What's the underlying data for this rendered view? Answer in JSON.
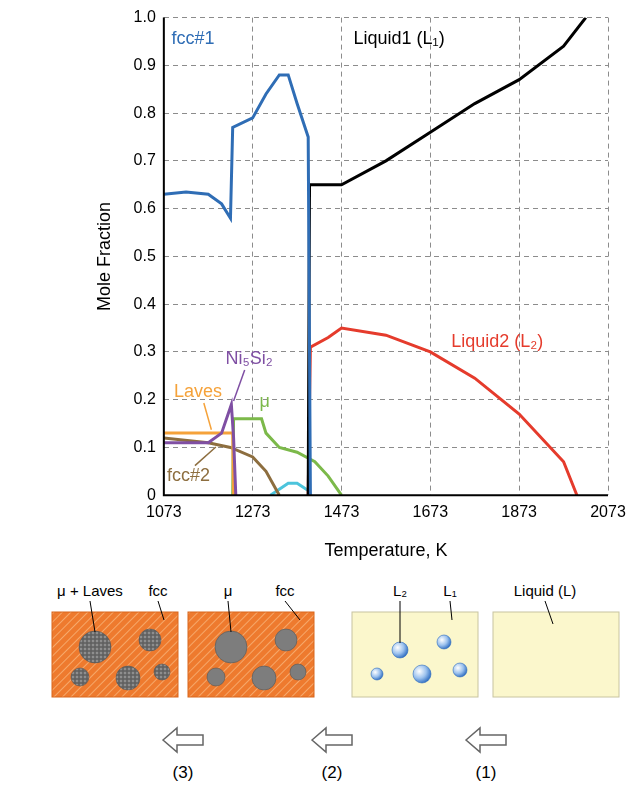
{
  "chart_data": {
    "type": "line",
    "xlabel": "Temperature, K",
    "ylabel": "Mole Fraction",
    "xlim": [
      1073,
      2073
    ],
    "xticks": [
      1073,
      1273,
      1473,
      1673,
      1873,
      2073
    ],
    "ylim": [
      0,
      1
    ],
    "yticks": [
      0,
      0.1,
      0.2,
      0.3,
      0.4,
      0.5,
      0.6,
      0.7,
      0.8,
      0.9,
      {
        "value": 1,
        "label": "1.0"
      }
    ],
    "grid": true,
    "series": [
      {
        "name": "fcc#1",
        "color": "#2f6db5",
        "x": [
          1073,
          1123,
          1173,
          1203,
          1223,
          1228,
          1273,
          1303,
          1333,
          1353,
          1373,
          1398,
          1403
        ],
        "values": [
          0.63,
          0.635,
          0.63,
          0.61,
          0.58,
          0.77,
          0.79,
          0.84,
          0.88,
          0.88,
          0.82,
          0.75,
          0
        ]
      },
      {
        "name": "Liquid1 (L₁)",
        "color": "#000000",
        "x": [
          1398,
          1401,
          1473,
          1573,
          1673,
          1773,
          1873,
          1973,
          2023
        ],
        "values": [
          0,
          0.65,
          0.65,
          0.7,
          0.76,
          0.82,
          0.87,
          0.94,
          1.0
        ]
      },
      {
        "name": "Liquid2 (L₂)",
        "color": "#e53b2c",
        "x": [
          1398,
          1401,
          1403,
          1443,
          1473,
          1573,
          1673,
          1773,
          1873,
          1973,
          2003
        ],
        "values": [
          0,
          0.2,
          0.31,
          0.33,
          0.35,
          0.335,
          0.3,
          0.245,
          0.17,
          0.07,
          0
        ]
      },
      {
        "name": "Ni₅Si₂",
        "color": "#7f4fa3",
        "x": [
          1073,
          1173,
          1203,
          1225,
          1230,
          1235
        ],
        "values": [
          0.11,
          0.11,
          0.13,
          0.19,
          0.12,
          0
        ]
      },
      {
        "name": "Laves",
        "color": "#f5a23a",
        "x": [
          1073,
          1228,
          1230
        ],
        "values": [
          0.13,
          0.13,
          0
        ]
      },
      {
        "name": "μ",
        "color": "#7cb94a",
        "x": [
          1228,
          1230,
          1293,
          1303,
          1333,
          1373,
          1413,
          1443,
          1473
        ],
        "values": [
          0,
          0.16,
          0.16,
          0.13,
          0.1,
          0.09,
          0.07,
          0.04,
          0
        ]
      },
      {
        "name": "fcc#2",
        "color": "#8d6e3f",
        "x": [
          1073,
          1173,
          1223,
          1273,
          1303,
          1333
        ],
        "values": [
          0.12,
          0.11,
          0.1,
          0.08,
          0.05,
          0
        ]
      },
      {
        "color": "#4cc4dc",
        "x": [
          1313,
          1353,
          1373,
          1398,
          1403
        ],
        "values": [
          0,
          0.025,
          0.025,
          0.01,
          0
        ]
      }
    ]
  },
  "diagram": {
    "panels": [
      {
        "labels": [
          "μ + Laves",
          "fcc"
        ]
      },
      {
        "labels": [
          "μ",
          "fcc"
        ]
      },
      {
        "labels": [
          "L₂",
          "L₁"
        ]
      },
      {
        "labels": [
          "Liquid (L)"
        ]
      }
    ],
    "steps": [
      "(3)",
      "(2)",
      "(1)"
    ]
  }
}
